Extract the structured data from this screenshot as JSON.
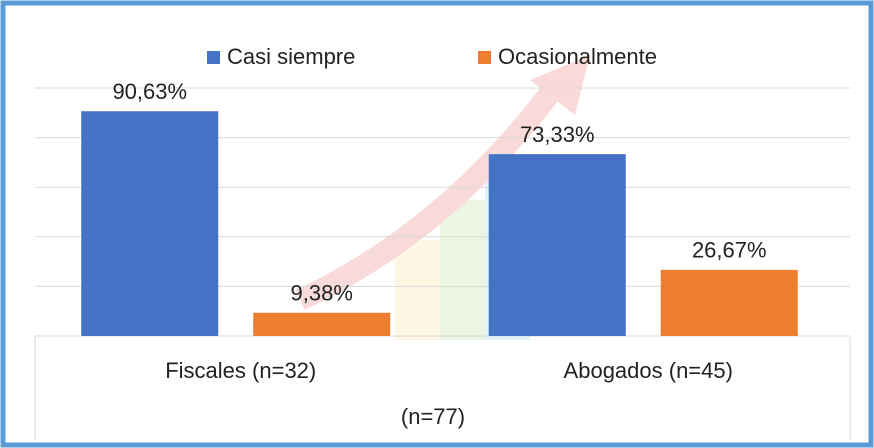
{
  "chart_data": {
    "type": "bar",
    "categories": [
      "Fiscales (n=32)",
      "Abogados (n=45)"
    ],
    "series": [
      {
        "name": "Casi siempre",
        "color": "#4472c4",
        "values": [
          90.63,
          73.33
        ],
        "value_labels": [
          "90,63%",
          "73,33%"
        ]
      },
      {
        "name": "Ocasionalmente",
        "color": "#ed7d31",
        "values": [
          9.38,
          26.67
        ],
        "value_labels": [
          "9,38%",
          "26,67%"
        ]
      }
    ],
    "x_label": "(n=77)",
    "ylim": [
      0,
      100
    ],
    "yticks": [
      0,
      20,
      40,
      60,
      80,
      100
    ],
    "grid": true,
    "legend": "top"
  }
}
